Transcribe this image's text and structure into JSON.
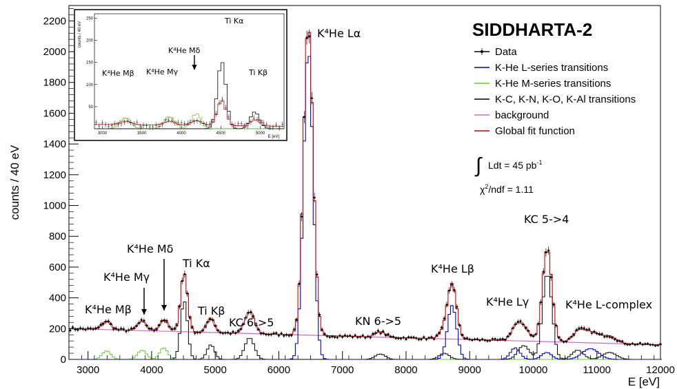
{
  "chart_data": {
    "type": "line",
    "title": "SIDDHARTA-2",
    "xlabel": "E [eV]",
    "ylabel": "counts / 40 eV",
    "xlim": [
      2700,
      12000
    ],
    "ylim": [
      0,
      2300
    ],
    "x_ticks": [
      3000,
      4000,
      5000,
      6000,
      7000,
      8000,
      9000,
      10000,
      11000,
      12000
    ],
    "x_tick_labels": [
      "3000",
      "4000",
      "5000",
      "6000",
      "7000",
      "8000",
      "9000",
      "10000",
      "11000",
      "12000"
    ],
    "y_ticks": [
      0,
      200,
      400,
      600,
      800,
      1000,
      1200,
      1400,
      1600,
      1800,
      2000,
      2200
    ],
    "y_tick_labels": [
      "0",
      "200",
      "400",
      "600",
      "800",
      "1000",
      "1200",
      "1400",
      "1600",
      "1800",
      "2000",
      "2200"
    ],
    "legend": {
      "placement": "top-right",
      "entries": [
        {
          "label": "Data",
          "color": "#000000"
        },
        {
          "label": "K-He L-series transitions",
          "color": "#0000cc"
        },
        {
          "label": "K-He M-series transitions",
          "color": "#66cc33"
        },
        {
          "label": "K-C, K-N, K-O, K-Al transitions",
          "color": "#000000"
        },
        {
          "label": "background",
          "color": "#cc66cc"
        },
        {
          "label": "Global fit function",
          "color": "#cc0000"
        }
      ],
      "luminosity_base": "Ldt = 45 pb",
      "luminosity_sup": "-1",
      "chi2_text": "/ndf = 1.11"
    },
    "background": {
      "start": 200,
      "end": 95
    },
    "series": [
      {
        "name": "K-He L-series transitions",
        "color": "#0000cc",
        "peaks": [
          {
            "e": 6463,
            "sigma": 75,
            "amp": 2020
          },
          {
            "e": 8723,
            "sigma": 72,
            "amp": 350
          },
          {
            "e": 9716,
            "sigma": 75,
            "amp": 75
          },
          {
            "e": 10210,
            "sigma": 80,
            "amp": 45
          },
          {
            "e": 10900,
            "sigma": 130,
            "amp": 70
          }
        ]
      },
      {
        "name": "K-He M-series transitions",
        "color": "#66cc33",
        "peaks": [
          {
            "e": 3290,
            "sigma": 70,
            "amp": 55
          },
          {
            "e": 3850,
            "sigma": 70,
            "amp": 60
          },
          {
            "e": 4190,
            "sigma": 65,
            "amp": 75
          }
        ]
      },
      {
        "name": "K-C, K-N, K-O, K-Al transitions",
        "color": "#000000",
        "peaks": [
          {
            "e": 4510,
            "sigma": 55,
            "amp": 380
          },
          {
            "e": 4930,
            "sigma": 60,
            "amp": 95
          },
          {
            "e": 5540,
            "sigma": 75,
            "amp": 140
          },
          {
            "e": 7595,
            "sigma": 80,
            "amp": 35
          },
          {
            "e": 8600,
            "sigma": 80,
            "amp": 40
          },
          {
            "e": 9850,
            "sigma": 90,
            "amp": 90
          },
          {
            "e": 10220,
            "sigma": 75,
            "amp": 560
          },
          {
            "e": 10700,
            "sigma": 90,
            "amp": 60
          },
          {
            "e": 11200,
            "sigma": 110,
            "amp": 45
          }
        ]
      },
      {
        "name": "Data",
        "color": "#000000",
        "points_note": "rendered as markers with error bars following the global fit"
      }
    ],
    "annotations": [
      {
        "text": "K⁴He Lα",
        "x": 6463,
        "y": 2180
      },
      {
        "text": "K⁴He Lβ",
        "x": 8723,
        "y": 520
      },
      {
        "text": "K⁴He Lγ",
        "x": 9780,
        "y": 330
      },
      {
        "text": "K⁴He L-complex",
        "x": 11000,
        "y": 330
      },
      {
        "text": "KC 5->4",
        "x": 10220,
        "y": 880
      },
      {
        "text": "KC 6->5",
        "x": 5540,
        "y": 240
      },
      {
        "text": "KN 6->5",
        "x": 7600,
        "y": 240
      },
      {
        "text": "Ti Kα",
        "x": 4510,
        "y": 630
      },
      {
        "text": "Ti Kβ",
        "x": 4930,
        "y": 280
      },
      {
        "text": "K⁴He Mδ",
        "x": 4190,
        "y": 640
      },
      {
        "text": "K⁴He Mγ",
        "x": 3850,
        "y": 480
      },
      {
        "text": "K⁴He Mβ",
        "x": 3290,
        "y": 280
      }
    ],
    "inset": {
      "xlim": [
        2900,
        5300
      ],
      "ylim": [
        0,
        260
      ],
      "ylabel": "counts / 40 eV",
      "xlabel": "E [eV]",
      "x_tick_labels": [
        "3000",
        "3500",
        "4000",
        "4500",
        "5000"
      ],
      "y_tick_labels": [
        "50",
        "100",
        "150",
        "200",
        "250"
      ],
      "annotations": [
        "K⁴He Mβ",
        "K⁴He Mγ",
        "K⁴He Mδ",
        "Ti Kα",
        "Ti Kβ"
      ]
    }
  }
}
